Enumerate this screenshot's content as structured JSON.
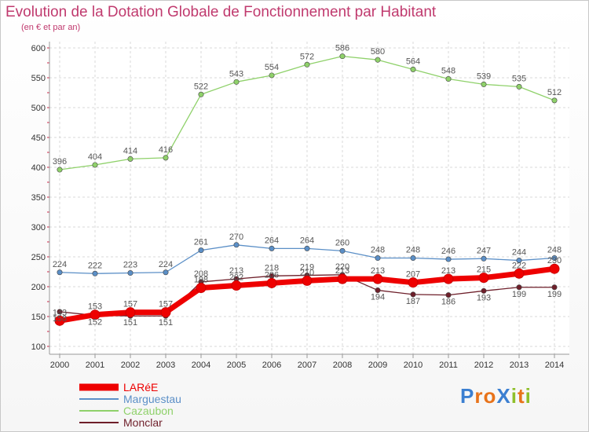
{
  "chart_data": {
    "type": "line",
    "title": "Evolution de la Dotation Globale de Fonctionnement par Habitant",
    "subtitle": "(en € et par an)",
    "xlabel": "",
    "ylabel": "",
    "ylim": [
      100,
      600
    ],
    "yticks": [
      100,
      150,
      200,
      250,
      300,
      350,
      400,
      450,
      500,
      550,
      600
    ],
    "categories": [
      "2000",
      "2001",
      "2002",
      "2003",
      "2004",
      "2005",
      "2006",
      "2007",
      "2008",
      "2009",
      "2010",
      "2011",
      "2012",
      "2013",
      "2014"
    ],
    "series": [
      {
        "name": "LARéE",
        "color": "#ee0000",
        "values": [
          143,
          153,
          157,
          157,
          198,
          202,
          206,
          210,
          213,
          213,
          207,
          213,
          215,
          222,
          230
        ]
      },
      {
        "name": "Marguestau",
        "color": "#5b8fc7",
        "values": [
          224,
          222,
          223,
          224,
          261,
          270,
          264,
          264,
          260,
          248,
          248,
          246,
          247,
          244,
          248
        ]
      },
      {
        "name": "Cazaubon",
        "color": "#8fd16a",
        "values": [
          396,
          404,
          414,
          416,
          522,
          543,
          554,
          572,
          586,
          580,
          564,
          548,
          539,
          535,
          512
        ]
      },
      {
        "name": "Monclar",
        "color": "#6e1f2a",
        "values": [
          158,
          152,
          151,
          151,
          208,
          213,
          218,
          219,
          220,
          194,
          187,
          186,
          193,
          199,
          199
        ]
      }
    ]
  },
  "logo": {
    "text": "ProXiti",
    "letters": [
      "P",
      "r",
      "o",
      "X",
      "i",
      "t",
      "i"
    ],
    "colors": [
      "#3b7fd1",
      "#e8731a",
      "#e8731a",
      "#3b7fd1",
      "#8fbf2a",
      "#e8731a",
      "#8fbf2a"
    ]
  }
}
